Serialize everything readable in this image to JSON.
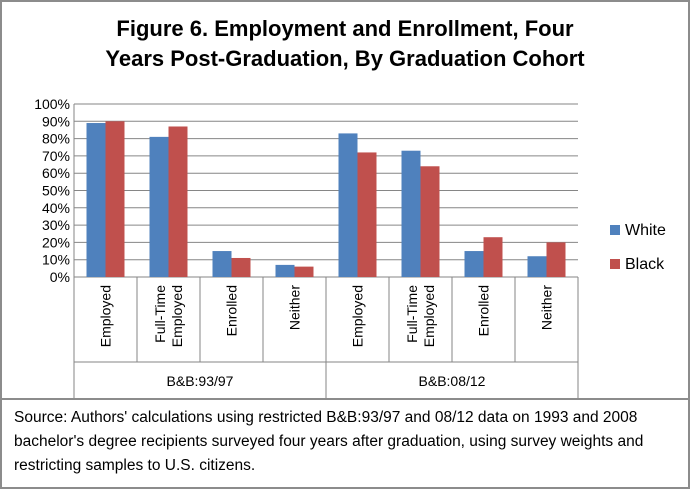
{
  "chart_data": {
    "type": "bar",
    "title_lines": [
      "Figure 6. Employment and Enrollment, Four",
      "Years Post-Graduation, By Graduation Cohort"
    ],
    "groups": [
      {
        "name": "B&B:93/97",
        "categories": [
          "Employed",
          "Full-Time Employed",
          "Enrolled",
          "Neither"
        ]
      },
      {
        "name": "B&B:08/12",
        "categories": [
          "Employed",
          "Full-Time Employed",
          "Enrolled",
          "Neither"
        ]
      }
    ],
    "category_label_lines": [
      [
        "Employed"
      ],
      [
        "Full-Time",
        "Employed"
      ],
      [
        "Enrolled"
      ],
      [
        "Neither"
      ],
      [
        "Employed"
      ],
      [
        "Full-Time",
        "Employed"
      ],
      [
        "Enrolled"
      ],
      [
        "Neither"
      ]
    ],
    "series": [
      {
        "name": "White",
        "color": "#4f81bd",
        "values": [
          0.89,
          0.81,
          0.15,
          0.07,
          0.83,
          0.73,
          0.15,
          0.12
        ]
      },
      {
        "name": "Black",
        "color": "#c0504d",
        "values": [
          0.9,
          0.87,
          0.11,
          0.06,
          0.72,
          0.64,
          0.23,
          0.2
        ]
      }
    ],
    "ylim": [
      0,
      1
    ],
    "yticks": [
      "0%",
      "10%",
      "20%",
      "30%",
      "40%",
      "50%",
      "60%",
      "70%",
      "80%",
      "90%",
      "100%"
    ],
    "grid": true,
    "legend_position": "right"
  },
  "source_note": "Source: Authors' calculations using restricted B&B:93/97 and 08/12 data on 1993 and 2008 bachelor's degree recipients surveyed four years after graduation, using survey weights and restricting samples to U.S. citizens."
}
